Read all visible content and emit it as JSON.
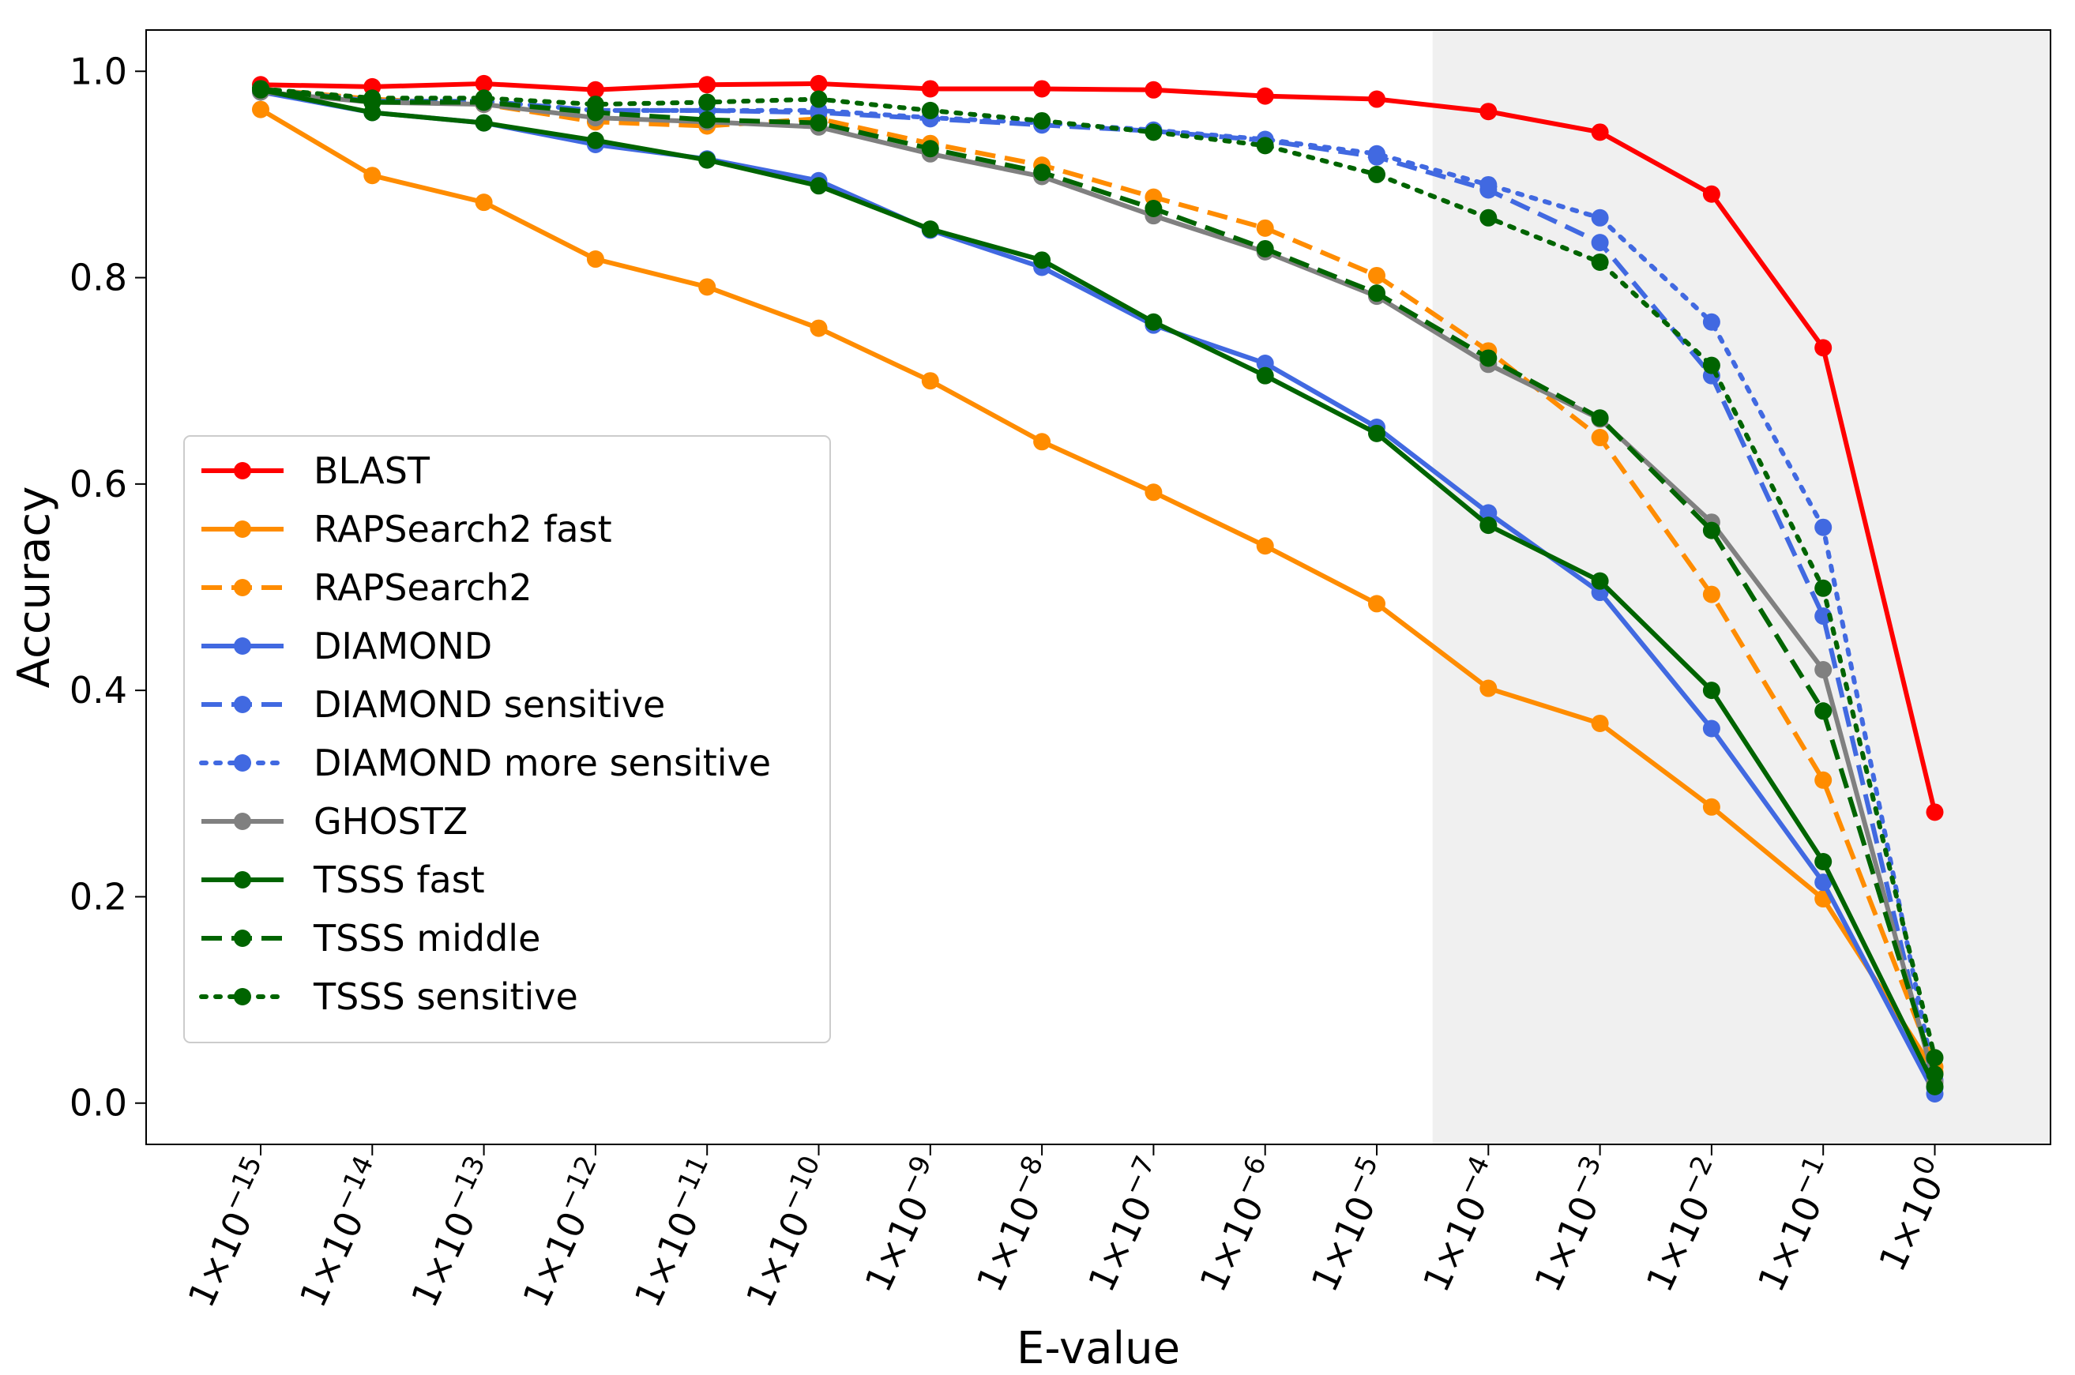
{
  "chart_data": {
    "type": "line",
    "xlabel": "E-value",
    "ylabel": "Accuracy",
    "ylim": [
      -0.04,
      1.04
    ],
    "yticks": [
      0.0,
      0.2,
      0.4,
      0.6,
      0.8,
      1.0
    ],
    "ytick_labels": [
      "0.0",
      "0.2",
      "0.4",
      "0.6",
      "0.8",
      "1.0"
    ],
    "categories": [
      "-15",
      "-14",
      "-13",
      "-12",
      "-11",
      "-10",
      "-9",
      "-8",
      "-7",
      "-6",
      "-5",
      "-4",
      "-3",
      "-2",
      "-1",
      "0"
    ],
    "category_label_prefix": "1×10",
    "shaded_region": {
      "from_index": 10.5,
      "to_index": 16.0,
      "color": "#f0f0f0"
    },
    "legend_position": "center-left",
    "series": [
      {
        "name": "BLAST",
        "color": "#ff0000",
        "style": "solid",
        "values": [
          0.987,
          0.985,
          0.988,
          0.982,
          0.987,
          0.988,
          0.983,
          0.983,
          0.982,
          0.976,
          0.973,
          0.961,
          0.941,
          0.881,
          0.732,
          0.282
        ]
      },
      {
        "name": "RAPSearch2 fast",
        "color": "#ff8c00",
        "style": "solid",
        "values": [
          0.963,
          0.899,
          0.873,
          0.818,
          0.791,
          0.751,
          0.7,
          0.641,
          0.592,
          0.54,
          0.484,
          0.402,
          0.368,
          0.287,
          0.198,
          0.03
        ]
      },
      {
        "name": "RAPSearch2",
        "color": "#ff8c00",
        "style": "dashed",
        "values": [
          0.983,
          0.973,
          0.968,
          0.951,
          0.947,
          0.954,
          0.93,
          0.909,
          0.878,
          0.848,
          0.802,
          0.729,
          0.645,
          0.493,
          0.313,
          0.035
        ]
      },
      {
        "name": "DIAMOND",
        "color": "#4169e1",
        "style": "solid",
        "values": [
          0.98,
          0.96,
          0.95,
          0.929,
          0.915,
          0.894,
          0.846,
          0.81,
          0.754,
          0.717,
          0.655,
          0.572,
          0.495,
          0.363,
          0.214,
          0.009
        ]
      },
      {
        "name": "DIAMOND sensitive",
        "color": "#4169e1",
        "style": "dashed",
        "values": [
          0.983,
          0.971,
          0.971,
          0.962,
          0.962,
          0.96,
          0.954,
          0.948,
          0.942,
          0.933,
          0.917,
          0.885,
          0.834,
          0.705,
          0.472,
          0.015
        ]
      },
      {
        "name": "DIAMOND more sensitive",
        "color": "#4169e1",
        "style": "dotted",
        "values": [
          0.983,
          0.971,
          0.971,
          0.962,
          0.962,
          0.962,
          0.955,
          0.95,
          0.943,
          0.934,
          0.92,
          0.89,
          0.858,
          0.757,
          0.558,
          0.022
        ]
      },
      {
        "name": "GHOSTZ",
        "color": "#808080",
        "style": "solid",
        "values": [
          0.98,
          0.97,
          0.968,
          0.955,
          0.951,
          0.946,
          0.92,
          0.898,
          0.86,
          0.825,
          0.782,
          0.716,
          0.663,
          0.563,
          0.42,
          0.02
        ]
      },
      {
        "name": "TSSS fast",
        "color": "#006400",
        "style": "solid",
        "values": [
          0.982,
          0.96,
          0.95,
          0.933,
          0.914,
          0.889,
          0.847,
          0.817,
          0.757,
          0.705,
          0.649,
          0.56,
          0.506,
          0.4,
          0.234,
          0.016
        ]
      },
      {
        "name": "TSSS middle",
        "color": "#006400",
        "style": "dashed",
        "values": [
          0.983,
          0.97,
          0.97,
          0.96,
          0.953,
          0.95,
          0.925,
          0.902,
          0.867,
          0.828,
          0.785,
          0.722,
          0.664,
          0.555,
          0.38,
          0.028
        ]
      },
      {
        "name": "TSSS sensitive",
        "color": "#006400",
        "style": "dotted",
        "values": [
          0.983,
          0.974,
          0.974,
          0.968,
          0.97,
          0.973,
          0.962,
          0.952,
          0.941,
          0.928,
          0.9,
          0.858,
          0.815,
          0.715,
          0.499,
          0.044
        ]
      }
    ]
  }
}
